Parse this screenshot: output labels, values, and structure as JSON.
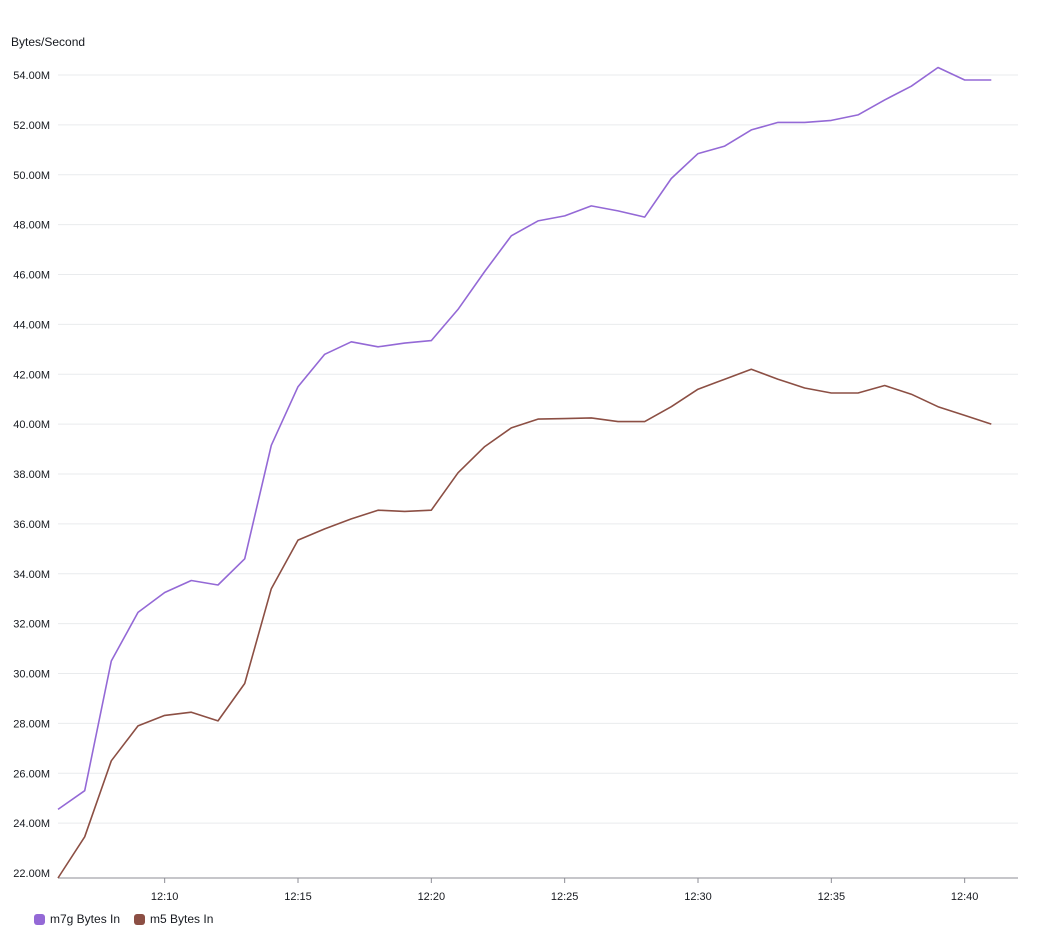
{
  "chart_data": {
    "type": "line",
    "ylabel": "Bytes/Second",
    "xlabel": "",
    "title": "",
    "ylim": [
      22000000,
      54000000
    ],
    "yticks": [
      22000000,
      24000000,
      26000000,
      28000000,
      30000000,
      32000000,
      34000000,
      36000000,
      38000000,
      40000000,
      42000000,
      44000000,
      46000000,
      48000000,
      50000000,
      52000000,
      54000000
    ],
    "ytick_labels": [
      "22.00M",
      "24.00M",
      "26.00M",
      "28.00M",
      "30.00M",
      "32.00M",
      "34.00M",
      "36.00M",
      "38.00M",
      "40.00M",
      "42.00M",
      "44.00M",
      "46.00M",
      "48.00M",
      "50.00M",
      "52.00M",
      "54.00M"
    ],
    "x_ticks": [
      "12:10",
      "12:15",
      "12:20",
      "12:25",
      "12:30",
      "12:35",
      "12:40"
    ],
    "x": [
      "12:06",
      "12:07",
      "12:08",
      "12:09",
      "12:10",
      "12:11",
      "12:12",
      "12:13",
      "12:14",
      "12:15",
      "12:16",
      "12:17",
      "12:18",
      "12:19",
      "12:20",
      "12:21",
      "12:22",
      "12:23",
      "12:24",
      "12:25",
      "12:26",
      "12:27",
      "12:28",
      "12:29",
      "12:30",
      "12:31",
      "12:32",
      "12:33",
      "12:34",
      "12:35",
      "12:36",
      "12:37",
      "12:38",
      "12:39",
      "12:40",
      "12:41"
    ],
    "xlim": [
      "12:06",
      "12:42"
    ],
    "grid": true,
    "legend_position": "bottom-left",
    "series": [
      {
        "name": "m7g Bytes In",
        "color": "#9469d6",
        "values": [
          24.55,
          25.3,
          30.5,
          32.45,
          33.25,
          33.73,
          33.55,
          34.6,
          39.15,
          41.5,
          42.8,
          43.3,
          43.1,
          43.25,
          43.35,
          44.6,
          46.12,
          47.55,
          48.15,
          48.35,
          48.75,
          48.55,
          48.3,
          49.85,
          50.85,
          51.15,
          51.8,
          52.1,
          52.1,
          52.18,
          52.4,
          53.0,
          53.55,
          54.3,
          53.8,
          53.8
        ]
      },
      {
        "name": "m5 Bytes In",
        "color": "#8c4f44",
        "values": [
          21.8,
          23.45,
          26.5,
          27.9,
          28.32,
          28.45,
          28.1,
          29.6,
          33.4,
          35.35,
          35.8,
          36.2,
          36.55,
          36.5,
          36.55,
          38.05,
          39.1,
          39.85,
          40.2,
          40.22,
          40.25,
          40.1,
          40.1,
          40.7,
          41.4,
          41.8,
          42.2,
          41.8,
          41.45,
          41.25,
          41.25,
          41.55,
          41.2,
          40.7,
          40.35,
          40.0
        ]
      }
    ]
  },
  "legend": {
    "items": [
      {
        "label": "m7g Bytes In",
        "color": "#9469d6"
      },
      {
        "label": "m5 Bytes In",
        "color": "#8c4f44"
      }
    ]
  }
}
